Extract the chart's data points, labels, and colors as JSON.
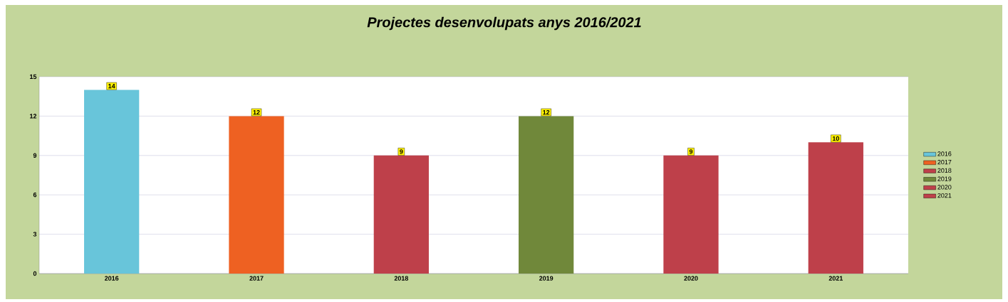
{
  "chart_data": {
    "type": "bar",
    "title": "Projectes desenvolupats anys 2016/2021",
    "categories": [
      "2016",
      "2017",
      "2018",
      "2019",
      "2020",
      "2021"
    ],
    "series": [
      {
        "name": "2016",
        "color": "#68c5da",
        "values": [
          14,
          null,
          null,
          null,
          null,
          null
        ]
      },
      {
        "name": "2017",
        "color": "#ee6122",
        "values": [
          null,
          12,
          null,
          null,
          null,
          null
        ]
      },
      {
        "name": "2018",
        "color": "#be404a",
        "values": [
          null,
          null,
          9,
          null,
          null,
          null
        ]
      },
      {
        "name": "2019",
        "color": "#70883a",
        "values": [
          null,
          null,
          null,
          12,
          null,
          null
        ]
      },
      {
        "name": "2020",
        "color": "#be404a",
        "values": [
          null,
          null,
          null,
          null,
          9,
          null
        ]
      },
      {
        "name": "2021",
        "color": "#be404a",
        "values": [
          null,
          null,
          null,
          null,
          null,
          10
        ]
      }
    ],
    "ylim": [
      0,
      15
    ],
    "yticks": [
      0,
      3,
      6,
      9,
      12,
      15
    ],
    "grid": "y",
    "legend": "right",
    "data_labels": true
  }
}
